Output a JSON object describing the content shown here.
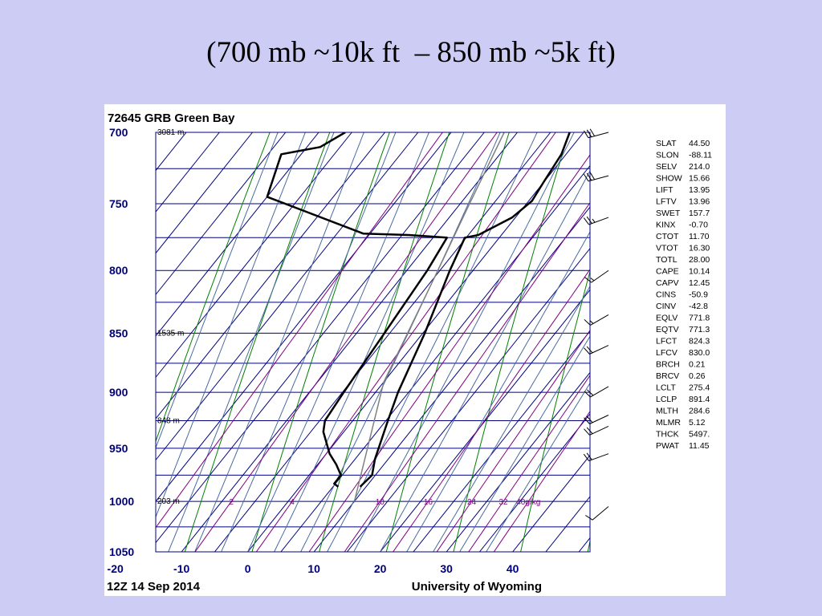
{
  "slide": {
    "title": "(700 mb ~10k ft  – 850 mb ~5k ft)"
  },
  "colors": {
    "background": "#ccccf5",
    "isobar": "#000080",
    "isotherm": "#000080",
    "dry_adiabat": "#008000",
    "moist_adiabat": "#4a6aa0",
    "mixing_ratio": "#800080",
    "temperature": "#000000",
    "dewpoint": "#000000",
    "parcel": "#808080"
  },
  "chart_data": {
    "type": "line",
    "subtype": "skew-t log-p sounding",
    "station": "72645 GRB Green Bay",
    "footer_left": "12Z 14 Sep 2014",
    "footer_right": "University of Wyoming",
    "pressure_ticks": [
      700,
      750,
      800,
      850,
      900,
      950,
      1000,
      1050
    ],
    "temperature_ticks": [
      -20,
      -10,
      0,
      10,
      20,
      30,
      40
    ],
    "height_labels": [
      {
        "p": 700,
        "text": "3081 m"
      },
      {
        "p": 850,
        "text": "1535 m"
      },
      {
        "p": 925,
        "text": "848 m"
      },
      {
        "p": 1000,
        "text": "203 m"
      }
    ],
    "mixing_ratio_labels": [
      {
        "w": 2,
        "text": "2"
      },
      {
        "w": 4,
        "text": "4"
      },
      {
        "w": 10,
        "text": "10"
      },
      {
        "w": 16,
        "text": "16"
      },
      {
        "w": 24,
        "text": "24"
      },
      {
        "w": 32,
        "text": "32"
      },
      {
        "w": 40,
        "text": "40g/kg"
      }
    ],
    "plim": [
      700,
      1050
    ],
    "series": [
      {
        "name": "Temperature",
        "points": [
          {
            "p": 986,
            "t": 9.1
          },
          {
            "p": 975,
            "t": 9.5
          },
          {
            "p": 960,
            "t": 8.0
          },
          {
            "p": 925,
            "t": 5.3
          },
          {
            "p": 900,
            "t": 3.4
          },
          {
            "p": 850,
            "t": 0.3
          },
          {
            "p": 800,
            "t": -3.5
          },
          {
            "p": 775,
            "t": -5.2
          },
          {
            "p": 773,
            "t": -3.5
          },
          {
            "p": 760,
            "t": -0.5
          },
          {
            "p": 748,
            "t": 0.5
          },
          {
            "p": 735,
            "t": 0.0
          },
          {
            "p": 715,
            "t": -0.7
          },
          {
            "p": 700,
            "t": -2.1
          }
        ]
      },
      {
        "name": "Dewpoint",
        "points": [
          {
            "p": 986,
            "t": 5.8
          },
          {
            "p": 983,
            "t": 4.8
          },
          {
            "p": 975,
            "t": 4.8
          },
          {
            "p": 965,
            "t": 2.8
          },
          {
            "p": 955,
            "t": 0.5
          },
          {
            "p": 935,
            "t": -3.1
          },
          {
            "p": 925,
            "t": -4.2
          },
          {
            "p": 900,
            "t": -4.8
          },
          {
            "p": 850,
            "t": -5.8
          },
          {
            "p": 800,
            "t": -6.9
          },
          {
            "p": 775,
            "t": -7.9
          },
          {
            "p": 773,
            "t": -14.0
          },
          {
            "p": 772,
            "t": -21.0
          },
          {
            "p": 745,
            "t": -40.0
          },
          {
            "p": 715,
            "t": -43.0
          },
          {
            "p": 710,
            "t": -38.0
          },
          {
            "p": 700,
            "t": -36.0
          }
        ]
      },
      {
        "name": "Parcel",
        "points": [
          {
            "p": 1000,
            "t": 10.0
          },
          {
            "p": 891,
            "t": 0.0
          },
          {
            "p": 850,
            "t": -2.3
          },
          {
            "p": 800,
            "t": -5.3
          },
          {
            "p": 750,
            "t": -8.6
          },
          {
            "p": 700,
            "t": -12.0
          }
        ]
      }
    ],
    "wind_barbs": [
      {
        "p": 700,
        "dir": 255,
        "kt": 30
      },
      {
        "p": 730,
        "dir": 255,
        "kt": 30
      },
      {
        "p": 760,
        "dir": 250,
        "kt": 25
      },
      {
        "p": 800,
        "dir": 235,
        "kt": 15
      },
      {
        "p": 835,
        "dir": 240,
        "kt": 15
      },
      {
        "p": 860,
        "dir": 245,
        "kt": 20
      },
      {
        "p": 895,
        "dir": 240,
        "kt": 20
      },
      {
        "p": 920,
        "dir": 245,
        "kt": 20
      },
      {
        "p": 930,
        "dir": 245,
        "kt": 20
      },
      {
        "p": 955,
        "dir": 250,
        "kt": 20
      },
      {
        "p": 1005,
        "dir": 230,
        "kt": 10
      }
    ],
    "indices": [
      {
        "name": "SLAT",
        "value": "44.50"
      },
      {
        "name": "SLON",
        "value": "-88.11"
      },
      {
        "name": "SELV",
        "value": "214.0"
      },
      {
        "name": "SHOW",
        "value": "15.66"
      },
      {
        "name": "LIFT",
        "value": "13.95"
      },
      {
        "name": "LFTV",
        "value": "13.96"
      },
      {
        "name": "SWET",
        "value": "157.7"
      },
      {
        "name": "KINX",
        "value": "-0.70"
      },
      {
        "name": "CTOT",
        "value": "11.70"
      },
      {
        "name": "VTOT",
        "value": "16.30"
      },
      {
        "name": "TOTL",
        "value": "28.00"
      },
      {
        "name": "CAPE",
        "value": "10.14"
      },
      {
        "name": "CAPV",
        "value": "12.45"
      },
      {
        "name": "CINS",
        "value": "-50.9"
      },
      {
        "name": "CINV",
        "value": "-42.8"
      },
      {
        "name": "EQLV",
        "value": "771.8"
      },
      {
        "name": "EQTV",
        "value": "771.3"
      },
      {
        "name": "LFCT",
        "value": "824.3"
      },
      {
        "name": "LFCV",
        "value": "830.0"
      },
      {
        "name": "BRCH",
        "value": "0.21"
      },
      {
        "name": "BRCV",
        "value": "0.26"
      },
      {
        "name": "LCLT",
        "value": "275.4"
      },
      {
        "name": "LCLP",
        "value": "891.4"
      },
      {
        "name": "MLTH",
        "value": "284.6"
      },
      {
        "name": "MLMR",
        "value": "5.12"
      },
      {
        "name": "THCK",
        "value": "5497."
      },
      {
        "name": "PWAT",
        "value": "11.45"
      }
    ]
  }
}
